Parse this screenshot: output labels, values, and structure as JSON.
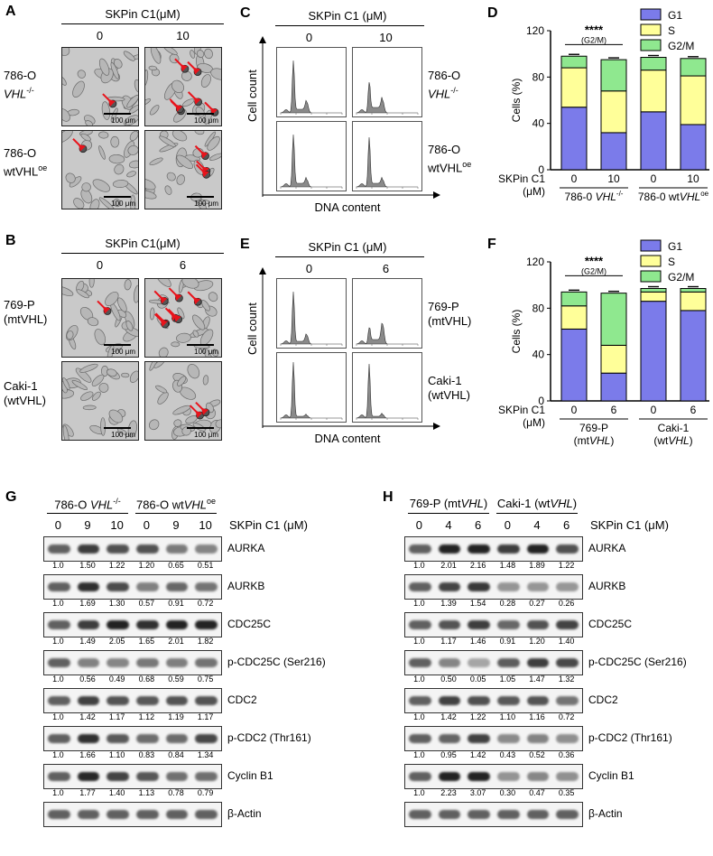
{
  "panelA": {
    "letter": "A",
    "header": "SKPin C1(μM)",
    "cols": [
      "0",
      "10"
    ],
    "rows": [
      {
        "line1": "786-O",
        "line2": "VHL",
        "sup": "-/-"
      },
      {
        "line1": "786-O",
        "line2": "wtVHL",
        "sup": "oe"
      }
    ],
    "scalebar": "100 μm"
  },
  "panelB": {
    "letter": "B",
    "header": "SKPin C1(μM)",
    "cols": [
      "0",
      "6"
    ],
    "rows": [
      {
        "line1": "769-P",
        "line2": "(mtVHL)"
      },
      {
        "line1": "Caki-1",
        "line2": "(wtVHL)"
      }
    ],
    "scalebar": "100 μm"
  },
  "panelC": {
    "letter": "C",
    "header": "SKPin C1 (μM)",
    "cols": [
      "0",
      "10"
    ],
    "rows": [
      {
        "line1": "786-O",
        "line2": "VHL",
        "sup": "-/-"
      },
      {
        "line1": "786-O",
        "line2": "wtVHL",
        "sup": "oe"
      }
    ],
    "ylabel": "Cell count",
    "xlabel": "DNA content"
  },
  "panelE": {
    "letter": "E",
    "header": "SKPin C1 (μM)",
    "cols": [
      "0",
      "6"
    ],
    "rows": [
      {
        "line1": "769-P",
        "line2": "(mtVHL)"
      },
      {
        "line1": "Caki-1",
        "line2": "(wtVHL)"
      }
    ],
    "ylabel": "Cell count",
    "xlabel": "DNA content"
  },
  "chart_data": [
    {
      "panel": "D",
      "type": "bar",
      "stacked": true,
      "ylabel": "Cells (%)",
      "ylim": [
        0,
        120
      ],
      "yticks": [
        "0",
        "40",
        "80",
        "120"
      ],
      "xlabel": "SKPin C1 (μM)",
      "categories": [
        "0",
        "10",
        "0",
        "10"
      ],
      "groups": [
        {
          "label": "786-0 VHL-/-"
        },
        {
          "label": "786-0 wtVHLoe"
        }
      ],
      "series": [
        {
          "name": "G1",
          "color": "#7b7bea",
          "values": [
            54,
            32,
            50,
            39
          ]
        },
        {
          "name": "S",
          "color": "#ffff99",
          "values": [
            34,
            36,
            36,
            42
          ]
        },
        {
          "name": "G2/M",
          "color": "#8fe88f",
          "values": [
            10,
            27,
            11,
            15
          ]
        }
      ],
      "annotation": "****",
      "annotation_sub": "(G2/M)",
      "legend": "top-right"
    },
    {
      "panel": "F",
      "type": "bar",
      "stacked": true,
      "ylabel": "Cells (%)",
      "ylim": [
        0,
        120
      ],
      "yticks": [
        "0",
        "40",
        "80",
        "120"
      ],
      "xlabel": "SKPin C1 (μM)",
      "categories": [
        "0",
        "6",
        "0",
        "6"
      ],
      "groups": [
        {
          "label": "769-P (mtVHL)"
        },
        {
          "label": "Caki-1 (wtVHL)"
        }
      ],
      "series": [
        {
          "name": "G1",
          "color": "#7b7bea",
          "values": [
            62,
            24,
            86,
            78
          ]
        },
        {
          "name": "S",
          "color": "#ffff99",
          "values": [
            20,
            24,
            8,
            16
          ]
        },
        {
          "name": "G2/M",
          "color": "#8fe88f",
          "values": [
            12,
            45,
            3,
            3
          ]
        }
      ],
      "annotation": "****",
      "annotation_sub": "(G2/M)",
      "legend": "top-right"
    }
  ],
  "panelG": {
    "letter": "G",
    "groups": [
      {
        "line": "786-O VHL",
        "sup": "-/-"
      },
      {
        "line": "786-O wtVHL",
        "sup": "oe"
      }
    ],
    "doses": [
      "0",
      "9",
      "10",
      "0",
      "9",
      "10"
    ],
    "dose_label": "SKPin C1 (μM)",
    "proteins": [
      {
        "name": "AURKA",
        "quant": [
          "1.0",
          "1.50",
          "1.22",
          "1.20",
          "0.65",
          "0.51"
        ]
      },
      {
        "name": "AURKB",
        "quant": [
          "1.0",
          "1.69",
          "1.30",
          "0.57",
          "0.91",
          "0.72"
        ]
      },
      {
        "name": "CDC25C",
        "quant": [
          "1.0",
          "1.49",
          "2.05",
          "1.65",
          "2.01",
          "1.82"
        ]
      },
      {
        "name": "p-CDC25C (Ser216)",
        "quant": [
          "1.0",
          "0.56",
          "0.49",
          "0.68",
          "0.59",
          "0.75"
        ]
      },
      {
        "name": "CDC2",
        "quant": [
          "1.0",
          "1.42",
          "1.17",
          "1.12",
          "1.19",
          "1.17"
        ]
      },
      {
        "name": "p-CDC2 (Thr161)",
        "quant": [
          "1.0",
          "1.66",
          "1.10",
          "0.83",
          "0.84",
          "1.34"
        ]
      },
      {
        "name": "Cyclin B1",
        "quant": [
          "1.0",
          "1.77",
          "1.40",
          "1.13",
          "0.78",
          "0.79"
        ]
      },
      {
        "name": "β-Actin",
        "quant": []
      }
    ]
  },
  "panelH": {
    "letter": "H",
    "groups": [
      {
        "line": "769-P (mtVHL)"
      },
      {
        "line": "Caki-1 (wtVHL)"
      }
    ],
    "doses": [
      "0",
      "4",
      "6",
      "0",
      "4",
      "6"
    ],
    "dose_label": "SKPin C1 (μM)",
    "proteins": [
      {
        "name": "AURKA",
        "quant": [
          "1.0",
          "2.01",
          "2.16",
          "1.48",
          "1.89",
          "1.22"
        ]
      },
      {
        "name": "AURKB",
        "quant": [
          "1.0",
          "1.39",
          "1.54",
          "0.28",
          "0.27",
          "0.26"
        ]
      },
      {
        "name": "CDC25C",
        "quant": [
          "1.0",
          "1.17",
          "1.46",
          "0.91",
          "1.20",
          "1.40"
        ]
      },
      {
        "name": "p-CDC25C (Ser216)",
        "quant": [
          "1.0",
          "0.50",
          "0.05",
          "1.05",
          "1.47",
          "1.32"
        ]
      },
      {
        "name": "CDC2",
        "quant": [
          "1.0",
          "1.42",
          "1.22",
          "1.10",
          "1.16",
          "0.72"
        ]
      },
      {
        "name": "p-CDC2 (Thr161)",
        "quant": [
          "1.0",
          "0.95",
          "1.42",
          "0.43",
          "0.52",
          "0.36"
        ]
      },
      {
        "name": "Cyclin B1",
        "quant": [
          "1.0",
          "2.23",
          "3.07",
          "0.30",
          "0.47",
          "0.35"
        ]
      },
      {
        "name": "β-Actin",
        "quant": []
      }
    ]
  }
}
